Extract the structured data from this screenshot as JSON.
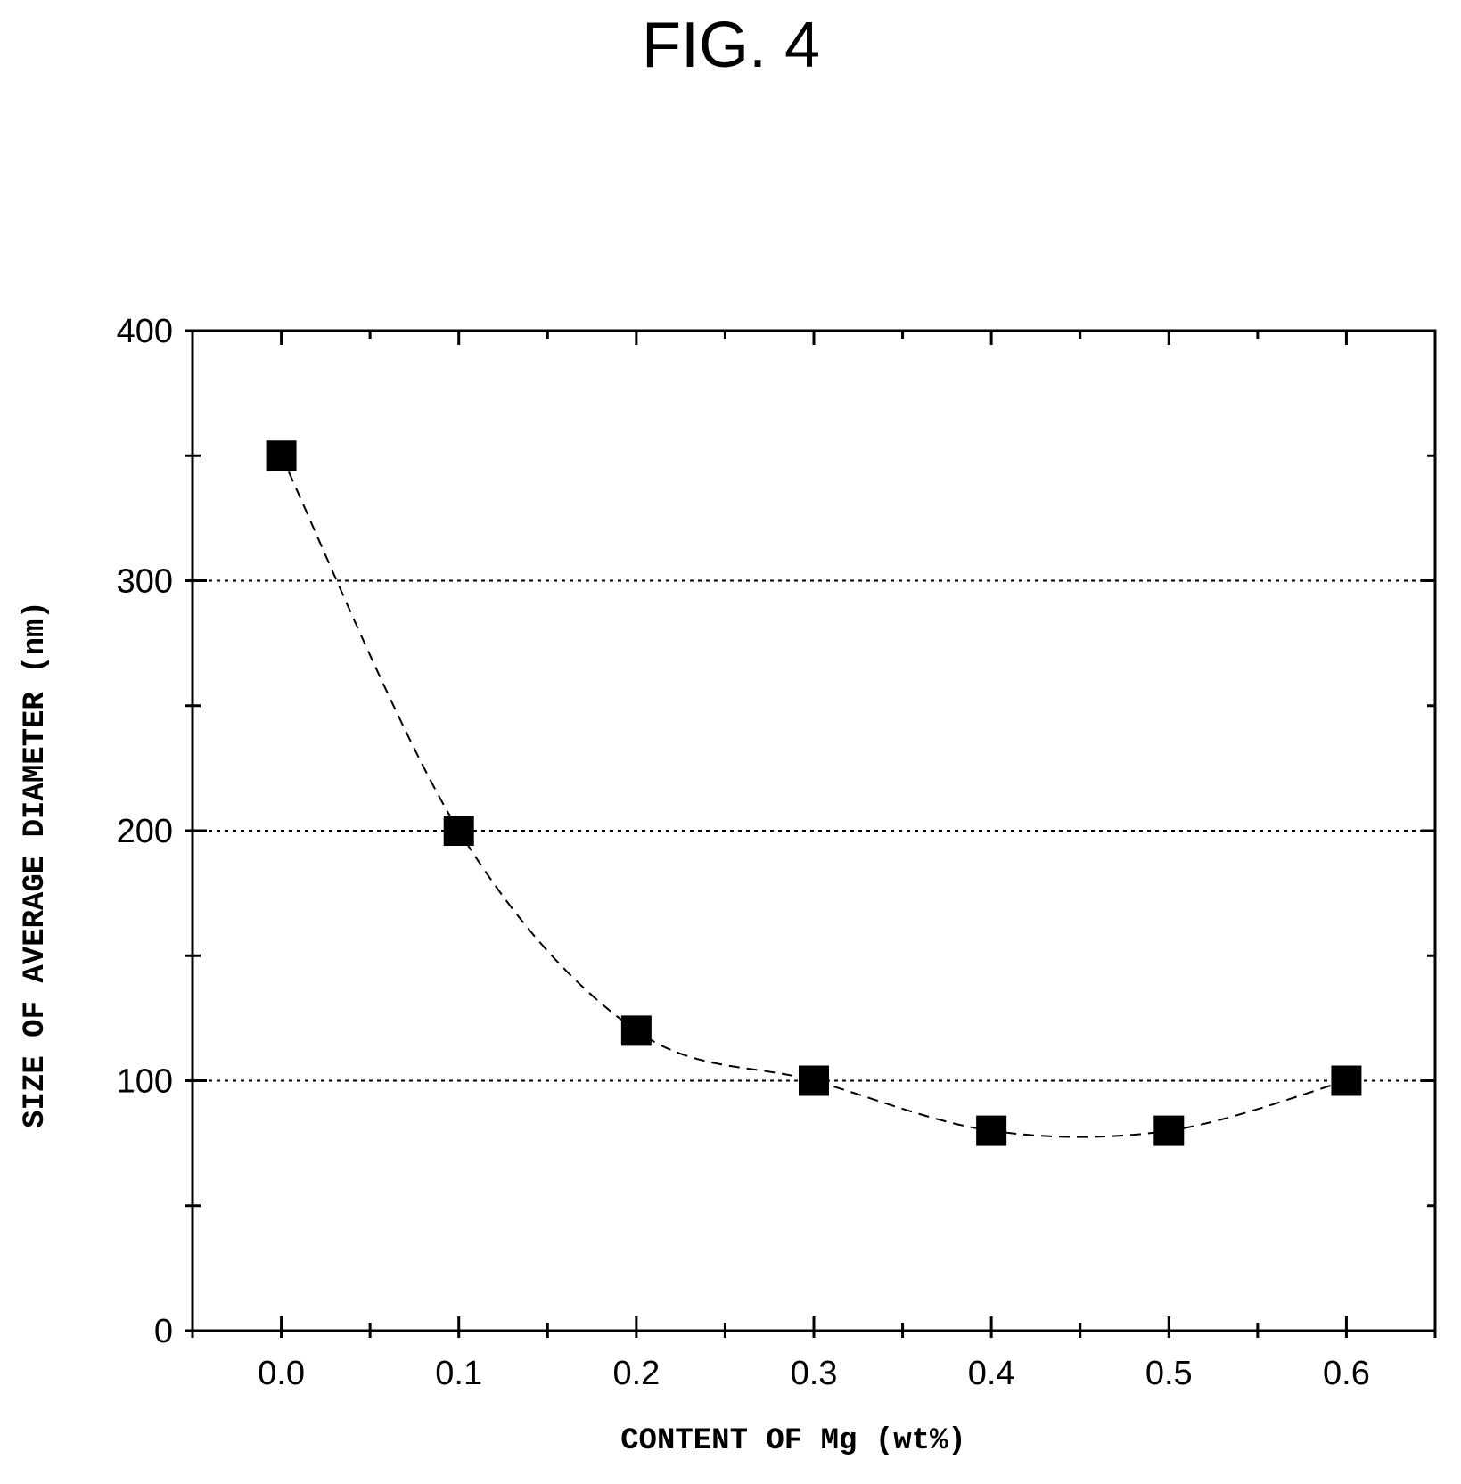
{
  "figure_label": "FIG. 4",
  "chart_data": {
    "type": "scatter",
    "title": "",
    "xlabel": "CONTENT OF Mg (wt%)",
    "ylabel": "SIZE OF AVERAGE DIAMETER (nm)",
    "xlim": [
      -0.05,
      0.65
    ],
    "ylim": [
      0,
      400
    ],
    "x_ticks": [
      "0.0",
      "0.1",
      "0.2",
      "0.3",
      "0.4",
      "0.5",
      "0.6"
    ],
    "y_ticks": [
      "0",
      "100",
      "200",
      "300",
      "400"
    ],
    "grid": "horizontal dotted at 100, 200, 300",
    "line_style": "dashed smoothed",
    "marker": "square",
    "series": [
      {
        "x": [
          0.0,
          0.1,
          0.2,
          0.3,
          0.4,
          0.5,
          0.6
        ],
        "y": [
          350,
          200,
          120,
          100,
          80,
          80,
          100
        ]
      }
    ],
    "colors": {
      "axis": "#000000",
      "marker": "#000000",
      "line": "#000000"
    }
  }
}
